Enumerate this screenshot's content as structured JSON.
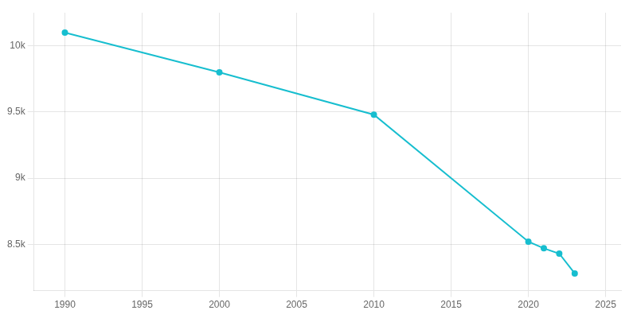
{
  "chart_data": {
    "type": "line",
    "x": [
      1990,
      2000,
      2010,
      2020,
      2021,
      2022,
      2023
    ],
    "values": [
      10100,
      9800,
      9480,
      8520,
      8470,
      8430,
      8280
    ],
    "color": "#17becf",
    "marker": "circle",
    "xlim": [
      1988,
      2026
    ],
    "xticks": [
      1990,
      1995,
      2000,
      2005,
      2010,
      2015,
      2020,
      2025
    ],
    "ylim": [
      8150,
      10250
    ],
    "yticks": [
      {
        "value": 8500,
        "label": "8.5k"
      },
      {
        "value": 9000,
        "label": "9k"
      },
      {
        "value": 9500,
        "label": "9.5k"
      },
      {
        "value": 10000,
        "label": "10k"
      }
    ],
    "grid": true
  }
}
